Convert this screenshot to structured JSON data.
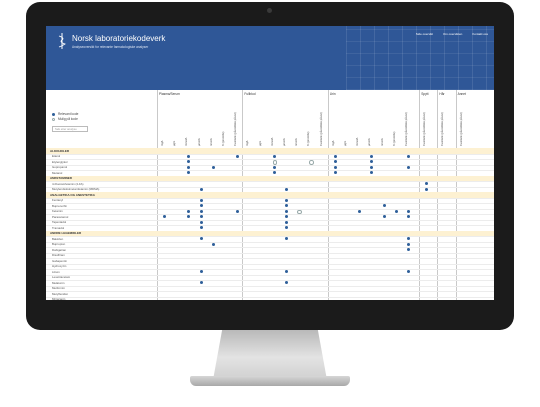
{
  "header": {
    "title": "Norsk laboratoriekodeverk",
    "subtitle": "Analyseoversikt for relevante farmakologiske analyser",
    "links": [
      "Side oversikt",
      "Om oversikten",
      "Kontakt oss"
    ],
    "brand_color": "#2f5797"
  },
  "legend": [
    {
      "label": "Relevant kode",
      "icon": "filled-dot",
      "color": "#2f5f9a"
    },
    {
      "label": "Mulig på kode",
      "icon": "open-dot",
      "color": "#9aa"
    }
  ],
  "search": {
    "placeholder": "Søk etter analyse"
  },
  "groups": [
    "Plasma/Serum",
    "Fullblod",
    "Urin",
    "Spytt",
    "Hår",
    "Annet"
  ],
  "columns": [
    "mg/L",
    "µg/L",
    "mmol/L",
    "µmol/L",
    "nmol/L",
    "% (promille)",
    "Kvalitativ (påvist/ikke påvist)",
    "mg/L",
    "µg/L",
    "mmol/L",
    "µmol/L",
    "nmol/L",
    "% (promille)",
    "Kvalitativ (påvist/ikke påvist)",
    "mg/L",
    "µg/L",
    "mmol/L",
    "µmol/L",
    "nmol/L",
    "% (promille)",
    "Kvalitativ (påvist/ikke påvist)",
    "Kvalitativ (påvist/ikke påvist)",
    "Kvalitativ (påvist/ikke påvist)",
    "Kvalitativ (påvist/ikke påvist)"
  ],
  "rows": [
    {
      "label": "ALKOHOLER",
      "category": true,
      "marks": []
    },
    {
      "label": "Etanol",
      "category": false,
      "marks": [
        2,
        6,
        9,
        14,
        17,
        20
      ]
    },
    {
      "label": "Etylenglykol",
      "category": false,
      "marks": [
        2,
        "o9",
        "o12",
        14,
        17
      ]
    },
    {
      "label": "Isopropanol",
      "category": false,
      "marks": [
        2,
        4,
        9,
        14,
        17,
        20
      ]
    },
    {
      "label": "Metanol",
      "category": false,
      "marks": [
        2,
        9,
        14,
        17
      ]
    },
    {
      "label": "AMFETAMINER",
      "category": true,
      "marks": []
    },
    {
      "label": "4-Fluoramfetamin (4-FA)",
      "category": false,
      "marks": [
        21
      ]
    },
    {
      "label": "Metylendioksimetamfetamin (MDMA)",
      "category": false,
      "marks": [
        3,
        10,
        21
      ]
    },
    {
      "label": "ANALGETIKA OG ANESTETIKA",
      "category": true,
      "marks": []
    },
    {
      "label": "Fentanyl",
      "category": false,
      "marks": [
        3,
        10
      ]
    },
    {
      "label": "Buprenorfin",
      "category": false,
      "marks": [
        3,
        10,
        18
      ]
    },
    {
      "label": "Ketamin",
      "category": false,
      "marks": [
        2,
        3,
        6,
        10,
        "o11",
        16,
        19,
        20
      ]
    },
    {
      "label": "Paracetamol",
      "category": false,
      "marks": [
        0,
        2,
        3,
        10,
        18,
        20
      ]
    },
    {
      "label": "Tapentadol",
      "category": false,
      "marks": [
        3,
        10
      ]
    },
    {
      "label": "Tramadol",
      "category": false,
      "marks": [
        3,
        10
      ]
    },
    {
      "label": "ANDRE LEGEMIDLER",
      "category": true,
      "marks": []
    },
    {
      "label": "Baklofen",
      "category": false,
      "marks": [
        3,
        10,
        20
      ]
    },
    {
      "label": "Bupropion",
      "category": false,
      "marks": [
        4,
        20
      ]
    },
    {
      "label": "Dabigatran",
      "category": false,
      "marks": [
        20
      ]
    },
    {
      "label": "Disulfiram",
      "category": false,
      "marks": []
    },
    {
      "label": "Gabapentin",
      "category": false,
      "marks": []
    },
    {
      "label": "Hydroxyzin",
      "category": false,
      "marks": []
    },
    {
      "label": "Litium",
      "category": false,
      "marks": [
        3,
        10,
        20
      ]
    },
    {
      "label": "Levetiracetam",
      "category": false,
      "marks": []
    },
    {
      "label": "Melatonin",
      "category": false,
      "marks": [
        3,
        10
      ]
    },
    {
      "label": "Metformin",
      "category": false,
      "marks": []
    },
    {
      "label": "Metylfenidat",
      "category": false,
      "marks": []
    },
    {
      "label": "Mirtazapin",
      "category": false,
      "marks": []
    }
  ]
}
